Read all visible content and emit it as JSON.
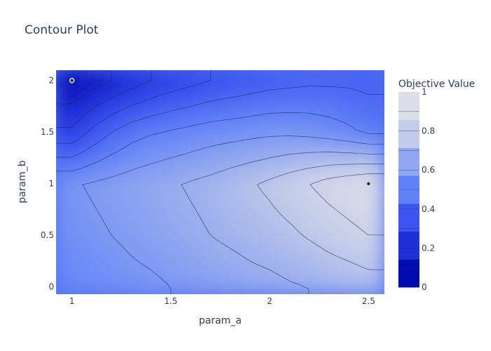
{
  "chart_data": {
    "type": "contour",
    "title": "Contour Plot",
    "xlabel": "param_a",
    "ylabel": "param_b",
    "xlim": [
      0.92,
      2.58
    ],
    "ylim": [
      -0.07,
      2.1
    ],
    "x_ticks": [
      1,
      1.5,
      2,
      2.5
    ],
    "x_tick_labels": [
      "1",
      "1.5",
      "2",
      "2.5"
    ],
    "y_ticks": [
      0,
      0.5,
      1,
      1.5,
      2
    ],
    "y_tick_labels": [
      "0",
      "0.5",
      "1",
      "1.5",
      "2"
    ],
    "colorbar": {
      "title": "Objective Value",
      "range": [
        0,
        1
      ],
      "ticks": [
        0,
        0.2,
        0.4,
        0.6,
        0.8,
        1
      ],
      "tick_labels": [
        "0",
        "0.2",
        "0.4",
        "0.6",
        "0.8",
        "1"
      ],
      "colors": [
        "#000cb0",
        "#2030d8",
        "#3c55f0",
        "#5f82f8",
        "#91a8f0",
        "#c3cce8",
        "#dcdee8"
      ]
    },
    "contour_levels": [
      0.1,
      0.2,
      0.3,
      0.4,
      0.5,
      0.6,
      0.7,
      0.8,
      0.9
    ],
    "z_grid": {
      "x": [
        1.0,
        1.1,
        1.2,
        1.3,
        1.4,
        1.5,
        1.6,
        1.7,
        1.8,
        1.9,
        2.0,
        2.1,
        2.2,
        2.3,
        2.4,
        2.5
      ],
      "y": [
        0,
        0.5,
        1.0,
        1.5,
        2.0
      ],
      "z": [
        [
          0.52,
          0.54,
          0.55,
          0.57,
          0.58,
          0.6,
          0.61,
          0.63,
          0.64,
          0.66,
          0.67,
          0.69,
          0.7,
          0.72,
          0.73,
          0.75
        ],
        [
          0.56,
          0.58,
          0.6,
          0.62,
          0.64,
          0.66,
          0.68,
          0.7,
          0.72,
          0.74,
          0.76,
          0.78,
          0.81,
          0.84,
          0.87,
          0.9
        ],
        [
          0.59,
          0.61,
          0.63,
          0.65,
          0.67,
          0.69,
          0.71,
          0.73,
          0.76,
          0.79,
          0.82,
          0.86,
          0.9,
          0.94,
          0.97,
          1.0
        ],
        [
          0.22,
          0.32,
          0.4,
          0.46,
          0.49,
          0.51,
          0.53,
          0.55,
          0.56,
          0.57,
          0.58,
          0.58,
          0.57,
          0.55,
          0.52,
          0.48
        ],
        [
          0.0,
          0.05,
          0.1,
          0.15,
          0.2,
          0.24,
          0.27,
          0.3,
          0.32,
          0.34,
          0.36,
          0.37,
          0.38,
          0.38,
          0.38,
          0.37
        ]
      ]
    },
    "points": [
      {
        "x": 1.0,
        "y": 2.0
      },
      {
        "x": 2.5,
        "y": 1.0
      }
    ]
  }
}
